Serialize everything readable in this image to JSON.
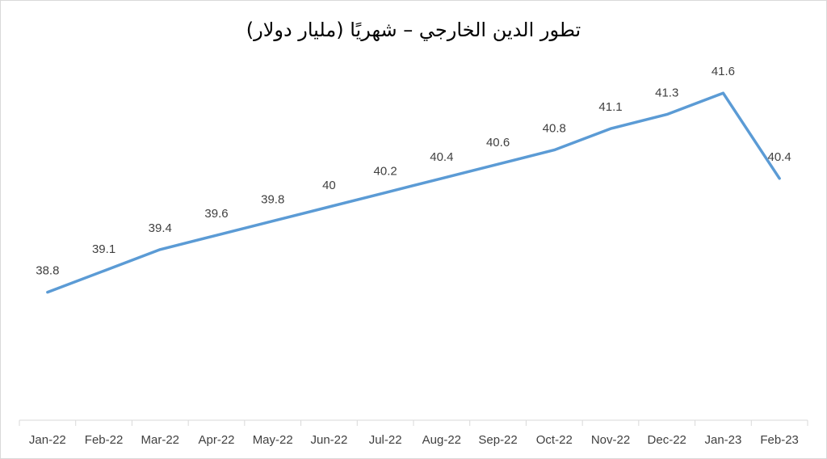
{
  "chart_data": {
    "type": "line",
    "title": "تطور الدين الخارجي – شهريًا (مليار دولار)",
    "categories": [
      "Jan-22",
      "Feb-22",
      "Mar-22",
      "Apr-22",
      "May-22",
      "Jun-22",
      "Jul-22",
      "Aug-22",
      "Sep-22",
      "Oct-22",
      "Nov-22",
      "Dec-22",
      "Jan-23",
      "Feb-23"
    ],
    "series": [
      {
        "name": "الدين الخارجي",
        "color": "#5b9bd5",
        "values": [
          38.8,
          39.1,
          39.4,
          39.6,
          39.8,
          40,
          40.2,
          40.4,
          40.6,
          40.8,
          41.1,
          41.3,
          41.6,
          40.4
        ]
      }
    ],
    "ylim": [
      37,
      42
    ],
    "grid": false
  }
}
